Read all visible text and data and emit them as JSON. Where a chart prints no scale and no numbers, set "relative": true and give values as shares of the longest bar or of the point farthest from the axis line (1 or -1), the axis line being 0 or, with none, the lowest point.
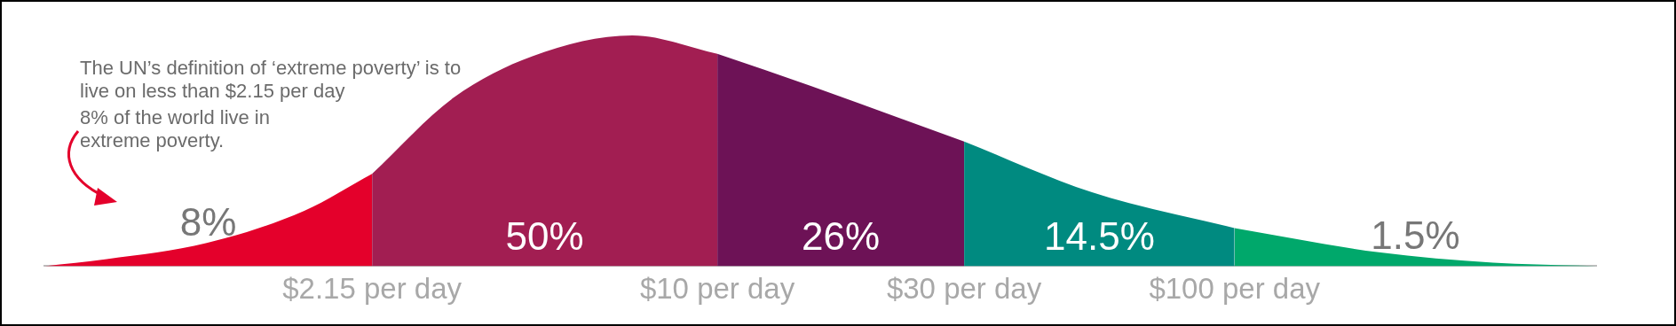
{
  "chart_data": {
    "type": "area",
    "relative": true,
    "grid": false,
    "legend": false,
    "log": "x",
    "xlim": [
      0.5,
      500
    ],
    "xticks": [
      {
        "value": 2.15,
        "label": "$2.15 per day"
      },
      {
        "value": 10,
        "label": "$10 per day"
      },
      {
        "value": 30,
        "label": "$30 per day"
      },
      {
        "value": 100,
        "label": "$100 per day"
      }
    ],
    "series": [
      {
        "color": "#e4002b",
        "x": [
          0.5,
          0.66,
          1.03,
          1.59,
          2.15
        ],
        "values": [
          0,
          0.03,
          0.1,
          0.24,
          0.4
        ]
      },
      {
        "color": "#a21e52",
        "x": [
          2.15,
          3.09,
          4.39,
          6.85,
          10
        ],
        "values": [
          0.4,
          0.73,
          0.91,
          1,
          0.92
        ]
      },
      {
        "color": "#6d1256",
        "x": [
          10,
          15.2,
          30
        ],
        "values": [
          0.92,
          0.78,
          0.54
        ]
      },
      {
        "color": "#008a80",
        "x": [
          30,
          53,
          100
        ],
        "values": [
          0.54,
          0.32,
          0.165
        ]
      },
      {
        "color": "#00a86b",
        "x": [
          100,
          190,
          316,
          500
        ],
        "values": [
          0.165,
          0.06,
          0.015,
          0
        ]
      }
    ],
    "annotations": [
      "The UN’s definition of ‘extreme poverty’ is to live on less than $2.15 per day",
      "8% of the world live in extreme poverty.",
      "8%",
      "50%",
      "26%",
      "14.5%",
      "1.5%"
    ]
  }
}
